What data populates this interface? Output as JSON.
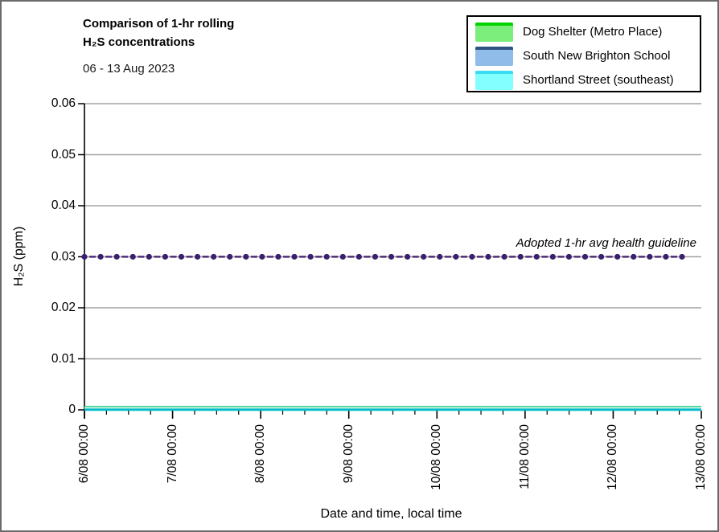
{
  "header": {
    "title_line1": "Comparison of 1-hr rolling",
    "title_line2": "H₂S concentrations",
    "date_range": "06 - 13 Aug 2023"
  },
  "legend": {
    "items": [
      {
        "label": "Dog Shelter (Metro Place)",
        "fill_color": "#7cee7c",
        "line_color": "#00d400"
      },
      {
        "label": "South New Brighton School",
        "fill_color": "#8fbce8",
        "line_color": "#2e5380"
      },
      {
        "label": "Shortland Street (southeast)",
        "fill_color": "#84ffff",
        "line_color": "#38dcf0"
      }
    ]
  },
  "axes": {
    "y_title": "H₂S (ppm)",
    "x_title": "Date and time, local time"
  },
  "guideline": {
    "label": "Adopted 1-hr avg health guideline",
    "value": 0.03,
    "color": "#3b1e6e"
  },
  "plot": {
    "grid_color": "#a3a3a3",
    "axis_color": "#000000",
    "zero_band_layers": [
      "#35cf8d",
      "#cdf5e4",
      "#00bccb"
    ]
  },
  "chart_data": {
    "type": "line",
    "title": "Comparison of 1-hr rolling H₂S concentrations",
    "subtitle": "06 - 13 Aug 2023",
    "xlabel": "Date and time, local time",
    "ylabel": "H₂S (ppm)",
    "ylim": [
      0,
      0.06
    ],
    "ytick_values": [
      0,
      0.01,
      0.02,
      0.03,
      0.04,
      0.05,
      0.06
    ],
    "ytick_labels": [
      "0",
      "0.01",
      "0.02",
      "0.03",
      "0.04",
      "0.05",
      "0.06"
    ],
    "categories": [
      "6/08 00:00",
      "7/08 00:00",
      "8/08 00:00",
      "9/08 00:00",
      "10/08 00:00",
      "11/08 00:00",
      "12/08 00:00",
      "13/08 00:00"
    ],
    "minor_ticks_per_interval": 3,
    "grid": "horizontal",
    "legend_position": "top-right",
    "series": [
      {
        "name": "Dog Shelter (Metro Place)",
        "values": [
          0,
          0,
          0,
          0,
          0,
          0,
          0,
          0
        ]
      },
      {
        "name": "South New Brighton School",
        "values": [
          0,
          0,
          0,
          0,
          0,
          0,
          0,
          0
        ]
      },
      {
        "name": "Shortland Street (southeast)",
        "values": [
          0,
          0,
          0,
          0,
          0,
          0,
          0,
          0
        ]
      }
    ],
    "annotations": [
      {
        "text": "Adopted 1-hr avg health guideline",
        "y": 0.03,
        "style": "dashed-line-with-circle-markers",
        "color": "#3b1e6e"
      }
    ]
  }
}
